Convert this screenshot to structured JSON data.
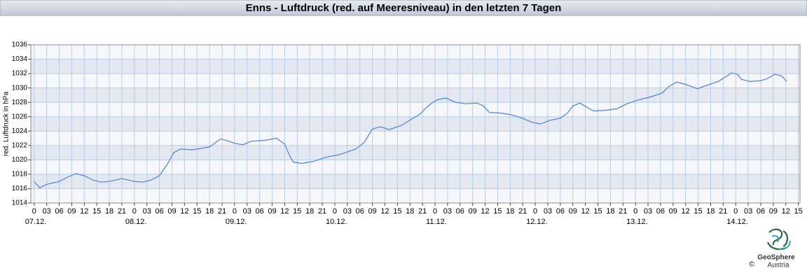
{
  "chart_data": {
    "type": "line",
    "title": "Enns - Luftdruck (red. auf Meeresniveau) in den letzten 7 Tagen",
    "y_label": "red. Luftdruck in hPa",
    "x": [
      0,
      1.3,
      3,
      6,
      8,
      10,
      12,
      14,
      16,
      18,
      21,
      24,
      26,
      28,
      30,
      32,
      33.4,
      35,
      38,
      42,
      44.6,
      46,
      48,
      50,
      52,
      55,
      58,
      60,
      61,
      62,
      64,
      67,
      70,
      73,
      77,
      79,
      81,
      83,
      85,
      88,
      90.5,
      92.5,
      93.4,
      95,
      96.7,
      98.6,
      100.9,
      103.4,
      106,
      107.6,
      109,
      111.8,
      114,
      116.9,
      119.3,
      121.3,
      123.5,
      126,
      127.7,
      129,
      130.7,
      132.4,
      134,
      137,
      139.5,
      142,
      144.5,
      147.9,
      150.4,
      152,
      153.8,
      155.4,
      157,
      158.8,
      161.3,
      163.8,
      165.5,
      167,
      168.4,
      169.4,
      171.4,
      173.9,
      175.6,
      177.3,
      179,
      180.2
    ],
    "series": [
      {
        "color": "#4f7fdc",
        "values": [
          1017.0,
          1016.1,
          1016.6,
          1017.0,
          1017.6,
          1018.1,
          1017.8,
          1017.2,
          1016.9,
          1017.0,
          1017.4,
          1017.0,
          1016.9,
          1017.2,
          1017.8,
          1019.5,
          1021.0,
          1021.5,
          1021.4,
          1021.8,
          1022.9,
          1022.7,
          1022.3,
          1022.1,
          1022.6,
          1022.7,
          1023.0,
          1022.2,
          1020.8,
          1019.7,
          1019.5,
          1019.8,
          1020.4,
          1020.7,
          1021.5,
          1022.4,
          1024.3,
          1024.6,
          1024.2,
          1024.8,
          1025.7,
          1026.4,
          1027.0,
          1027.8,
          1028.4,
          1028.6,
          1028.0,
          1027.8,
          1027.9,
          1027.5,
          1026.6,
          1026.5,
          1026.3,
          1025.8,
          1025.2,
          1025.0,
          1025.5,
          1025.8,
          1026.5,
          1027.5,
          1027.9,
          1027.3,
          1026.8,
          1026.9,
          1027.1,
          1027.8,
          1028.3,
          1028.8,
          1029.3,
          1030.2,
          1030.8,
          1030.6,
          1030.3,
          1029.9,
          1030.4,
          1030.9,
          1031.5,
          1032.1,
          1031.9,
          1031.2,
          1030.9,
          1031.0,
          1031.3,
          1031.9,
          1031.7,
          1030.9
        ]
      }
    ],
    "xlim": [
      -0.8,
      183.4
    ],
    "ylim": [
      1014,
      1036
    ],
    "yticks": [
      1014,
      1016,
      1018,
      1020,
      1022,
      1024,
      1026,
      1028,
      1030,
      1032,
      1034,
      1036
    ],
    "xticks": [
      {
        "value": 0,
        "label": "0"
      },
      {
        "value": 3,
        "label": "03"
      },
      {
        "value": 6,
        "label": "06"
      },
      {
        "value": 9,
        "label": "09"
      },
      {
        "value": 12,
        "label": "12"
      },
      {
        "value": 15,
        "label": "15"
      },
      {
        "value": 18,
        "label": "18"
      },
      {
        "value": 21,
        "label": "21"
      },
      {
        "value": 24,
        "label": "0"
      },
      {
        "value": 27,
        "label": "03"
      },
      {
        "value": 30,
        "label": "06"
      },
      {
        "value": 33,
        "label": "09"
      },
      {
        "value": 36,
        "label": "12"
      },
      {
        "value": 39,
        "label": "15"
      },
      {
        "value": 42,
        "label": "18"
      },
      {
        "value": 45,
        "label": "21"
      },
      {
        "value": 48,
        "label": "0"
      },
      {
        "value": 51,
        "label": "03"
      },
      {
        "value": 54,
        "label": "06"
      },
      {
        "value": 57,
        "label": "09"
      },
      {
        "value": 60,
        "label": "12"
      },
      {
        "value": 63,
        "label": "15"
      },
      {
        "value": 66,
        "label": "18"
      },
      {
        "value": 69,
        "label": "21"
      },
      {
        "value": 72,
        "label": "0"
      },
      {
        "value": 75,
        "label": "03"
      },
      {
        "value": 78,
        "label": "06"
      },
      {
        "value": 81,
        "label": "09"
      },
      {
        "value": 84,
        "label": "12"
      },
      {
        "value": 87,
        "label": "15"
      },
      {
        "value": 90,
        "label": "18"
      },
      {
        "value": 93,
        "label": "21"
      },
      {
        "value": 96,
        "label": "0"
      },
      {
        "value": 99,
        "label": "03"
      },
      {
        "value": 102,
        "label": "06"
      },
      {
        "value": 105,
        "label": "09"
      },
      {
        "value": 108,
        "label": "12"
      },
      {
        "value": 111,
        "label": "15"
      },
      {
        "value": 114,
        "label": "18"
      },
      {
        "value": 117,
        "label": "21"
      },
      {
        "value": 120,
        "label": "0"
      },
      {
        "value": 123,
        "label": "03"
      },
      {
        "value": 126,
        "label": "06"
      },
      {
        "value": 129,
        "label": "09"
      },
      {
        "value": 132,
        "label": "12"
      },
      {
        "value": 135,
        "label": "15"
      },
      {
        "value": 138,
        "label": "18"
      },
      {
        "value": 141,
        "label": "21"
      },
      {
        "value": 144,
        "label": "0"
      },
      {
        "value": 147,
        "label": "03"
      },
      {
        "value": 150,
        "label": "06"
      },
      {
        "value": 153,
        "label": "09"
      },
      {
        "value": 156,
        "label": "12"
      },
      {
        "value": 159,
        "label": "15"
      },
      {
        "value": 162,
        "label": "18"
      },
      {
        "value": 165,
        "label": "21"
      },
      {
        "value": 168,
        "label": "0"
      },
      {
        "value": 171,
        "label": "03"
      },
      {
        "value": 174,
        "label": "06"
      },
      {
        "value": 177,
        "label": "09"
      },
      {
        "value": 180,
        "label": "12"
      },
      {
        "value": 183,
        "label": "15"
      }
    ],
    "date_labels": [
      {
        "value": 0,
        "label": "07.12."
      },
      {
        "value": 24,
        "label": "08.12."
      },
      {
        "value": 48,
        "label": "09.12."
      },
      {
        "value": 72,
        "label": "10.12."
      },
      {
        "value": 96,
        "label": "11.12."
      },
      {
        "value": 120,
        "label": "12.12."
      },
      {
        "value": 144,
        "label": "13.12."
      },
      {
        "value": 168,
        "label": "14.12."
      }
    ],
    "grid": true,
    "credits": [
      "GeoSphere",
      "©",
      "Austria"
    ]
  }
}
